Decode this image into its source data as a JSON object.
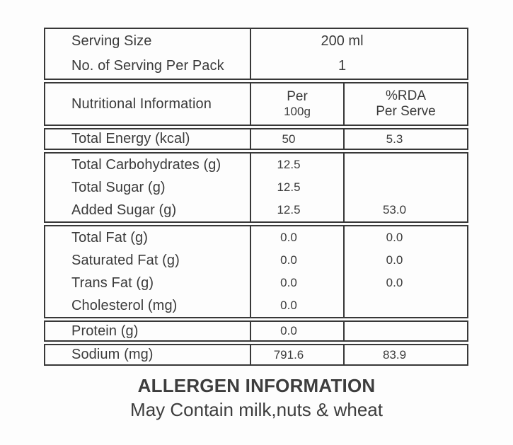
{
  "style": {
    "border_color": "#383838",
    "text_color": "#3b3b3b",
    "background_color": "#fdfdfd"
  },
  "serving_info": {
    "rows": [
      {
        "label": "Serving Size",
        "value": "200 ml"
      },
      {
        "label": "No. of Serving Per Pack",
        "value": "1"
      }
    ]
  },
  "table_header": {
    "label": "Nutritional Information",
    "col2_line1": "Per",
    "col2_line2": "100g",
    "col3_line1": "%RDA",
    "col3_line2": "Per Serve"
  },
  "sections": [
    {
      "name": "energy",
      "rows": [
        {
          "label": "Total Energy (kcal)",
          "per_100g": "50",
          "rda_per_serve": "5.3"
        }
      ]
    },
    {
      "name": "carbohydrates",
      "rows": [
        {
          "label": "Total Carbohydrates (g)",
          "per_100g": "12.5",
          "rda_per_serve": ""
        },
        {
          "label": "Total Sugar (g)",
          "per_100g": "12.5",
          "rda_per_serve": ""
        },
        {
          "label": "Added Sugar (g)",
          "per_100g": "12.5",
          "rda_per_serve": "53.0"
        }
      ]
    },
    {
      "name": "fats",
      "rows": [
        {
          "label": "Total Fat (g)",
          "per_100g": "0.0",
          "rda_per_serve": "0.0"
        },
        {
          "label": "Saturated Fat (g)",
          "per_100g": "0.0",
          "rda_per_serve": "0.0"
        },
        {
          "label": "Trans Fat (g)",
          "per_100g": "0.0",
          "rda_per_serve": "0.0"
        },
        {
          "label": "Cholesterol (mg)",
          "per_100g": "0.0",
          "rda_per_serve": ""
        }
      ]
    },
    {
      "name": "protein",
      "rows": [
        {
          "label": "Protein (g)",
          "per_100g": "0.0",
          "rda_per_serve": ""
        }
      ]
    },
    {
      "name": "sodium",
      "rows": [
        {
          "label": "Sodium (mg)",
          "per_100g": "791.6",
          "rda_per_serve": "83.9"
        }
      ]
    }
  ],
  "allergen": {
    "title": "ALLERGEN INFORMATION",
    "text": "May Contain milk,nuts & wheat"
  }
}
